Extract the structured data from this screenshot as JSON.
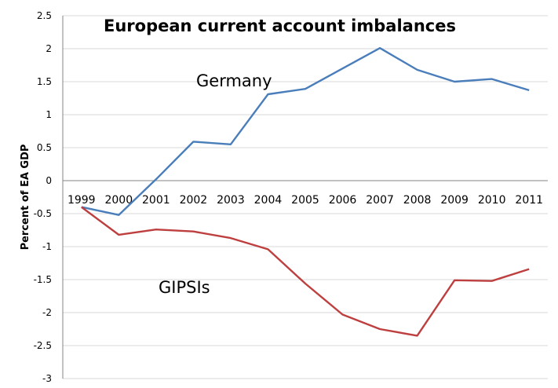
{
  "chart_data": {
    "type": "line",
    "title": "European current account imbalances",
    "ylabel": "Percent of EA GDP",
    "xlabel": "",
    "ylim": [
      -3,
      2.5
    ],
    "y_ticks": [
      "2.5",
      "2",
      "1.5",
      "1",
      "0.5",
      "0",
      "-0.5",
      "-1",
      "-1.5",
      "-2",
      "-2.5",
      "-3"
    ],
    "grid": true,
    "legend": "none",
    "categories": [
      "1999",
      "2000",
      "2001",
      "2002",
      "2003",
      "2004",
      "2005",
      "2006",
      "2007",
      "2008",
      "2009",
      "2010",
      "2011"
    ],
    "series": [
      {
        "name": "Germany",
        "color": "#4a7ebb",
        "values": [
          -0.4,
          -0.52,
          0.02,
          0.59,
          0.55,
          1.31,
          1.39,
          1.7,
          2.01,
          1.68,
          1.5,
          1.54,
          1.37
        ]
      },
      {
        "name": "GIPSIs",
        "color": "#be3f3f",
        "values": [
          -0.4,
          -0.82,
          -0.74,
          -0.77,
          -0.87,
          -1.04,
          -1.56,
          -2.03,
          -2.25,
          -2.35,
          -1.51,
          -1.52,
          -1.34
        ]
      }
    ],
    "annotations": [
      "Germany",
      "GIPSIs"
    ]
  }
}
